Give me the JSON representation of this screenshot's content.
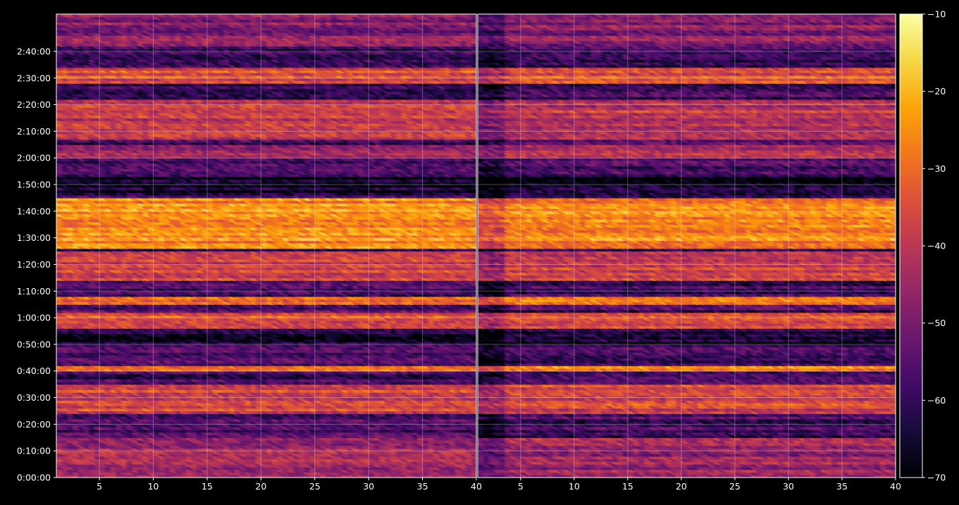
{
  "chart_data": {
    "type": "heatmap",
    "colormap": "inferno",
    "background": "#000000",
    "text_color": "#ffffff",
    "grid": true,
    "grid_color": "#ffffff",
    "panels": [
      {
        "xlim": [
          1,
          40
        ],
        "xticks": [
          5,
          10,
          15,
          20,
          25,
          30,
          35,
          40
        ],
        "ylim_seconds": [
          0,
          10440
        ],
        "yticks": [
          {
            "value": 0,
            "label": "0:00:00"
          },
          {
            "value": 600,
            "label": "0:10:00"
          },
          {
            "value": 1200,
            "label": "0:20:00"
          },
          {
            "value": 1800,
            "label": "0:30:00"
          },
          {
            "value": 2400,
            "label": "0:40:00"
          },
          {
            "value": 3000,
            "label": "0:50:00"
          },
          {
            "value": 3600,
            "label": "1:00:00"
          },
          {
            "value": 4200,
            "label": "1:10:00"
          },
          {
            "value": 4800,
            "label": "1:20:00"
          },
          {
            "value": 5400,
            "label": "1:30:00"
          },
          {
            "value": 6000,
            "label": "1:40:00"
          },
          {
            "value": 6600,
            "label": "1:50:00"
          },
          {
            "value": 7200,
            "label": "2:00:00"
          },
          {
            "value": 7800,
            "label": "2:10:00"
          },
          {
            "value": 8400,
            "label": "2:20:00"
          },
          {
            "value": 9000,
            "label": "2:30:00"
          },
          {
            "value": 9600,
            "label": "2:40:00"
          }
        ]
      },
      {
        "xlim": [
          1,
          40
        ],
        "xticks": [
          5,
          10,
          15,
          20,
          25,
          30,
          35,
          40
        ]
      }
    ],
    "colorbar": {
      "range": [
        -70,
        -10
      ],
      "ticks": [
        -10,
        -20,
        -30,
        -40,
        -50,
        -60,
        -70
      ],
      "tick_labels": [
        "−10",
        "−20",
        "−30",
        "−40",
        "−50",
        "−60",
        "−70"
      ]
    },
    "bands": [
      {
        "y_range": [
          0,
          900
        ],
        "level": -46
      },
      {
        "y_range": [
          1500,
          2100
        ],
        "level": -36
      },
      {
        "y_range": [
          2460,
          2520
        ],
        "level": -28
      },
      {
        "y_range": [
          3420,
          3720
        ],
        "level": -34
      },
      {
        "y_range": [
          3960,
          4080
        ],
        "level": -30
      },
      {
        "y_range": [
          4500,
          5100
        ],
        "level": -38
      },
      {
        "y_range": [
          5220,
          6300
        ],
        "level": -26
      },
      {
        "y_range": [
          7260,
          7500
        ],
        "level": -44
      },
      {
        "y_range": [
          7680,
          8520
        ],
        "level": -40
      },
      {
        "y_range": [
          8940,
          9240
        ],
        "level": -34
      },
      {
        "y_range": [
          9780,
          10440
        ],
        "level": -48
      }
    ],
    "gaps": [
      {
        "y_range": [
          3060,
          3300
        ],
        "level": -66
      },
      {
        "y_range": [
          6420,
          6780
        ],
        "level": -66
      }
    ]
  }
}
